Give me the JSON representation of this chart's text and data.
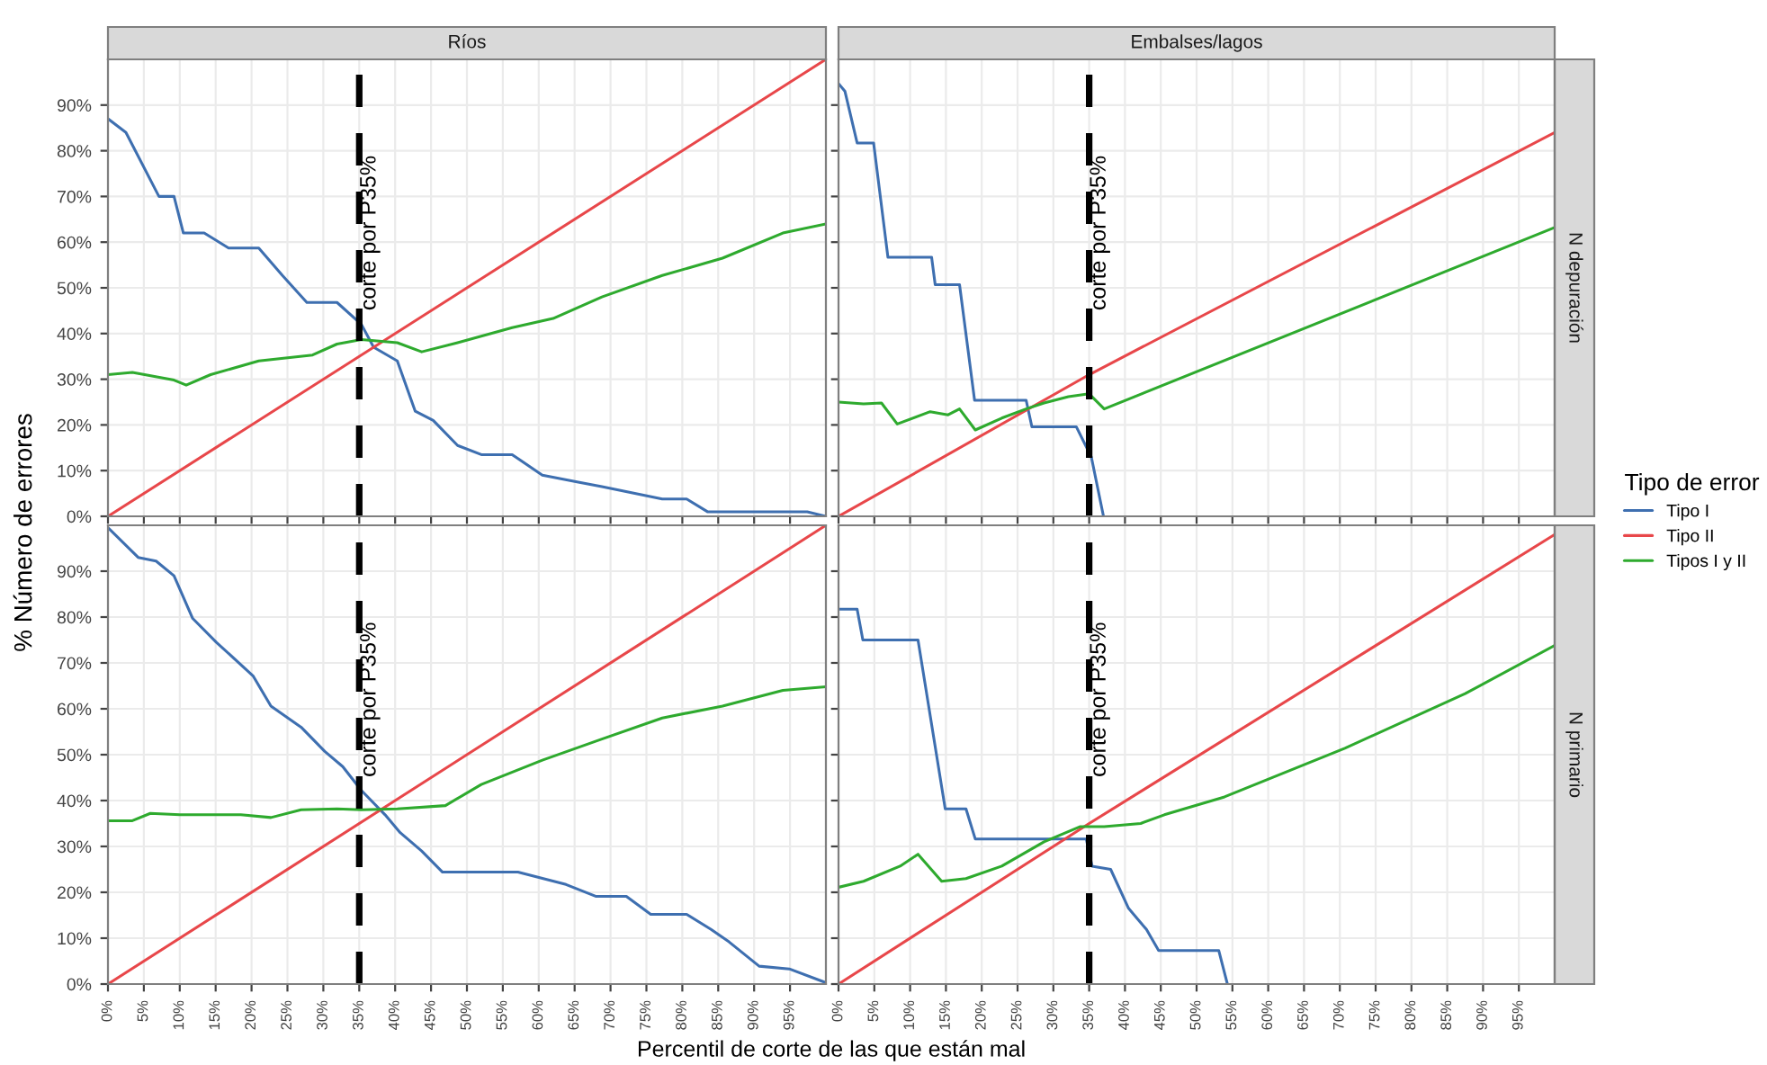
{
  "chart_data": [
    {
      "type": "line",
      "title": "Ríos",
      "xlim": [
        0,
        100
      ],
      "ylim": [
        0,
        100
      ],
      "xticks": [
        {
          "value": 0,
          "label": null
        },
        {
          "value": 5,
          "label": null
        },
        {
          "value": 10,
          "label": null
        },
        {
          "value": 15,
          "label": null
        },
        {
          "value": 20,
          "label": null
        },
        {
          "value": 25,
          "label": null
        },
        {
          "value": 30,
          "label": null
        },
        {
          "value": 35,
          "label": null
        },
        {
          "value": 40,
          "label": null
        },
        {
          "value": 45,
          "label": null
        },
        {
          "value": 50,
          "label": null
        },
        {
          "value": 55,
          "label": null
        },
        {
          "value": 60,
          "label": null
        },
        {
          "value": 65,
          "label": null
        },
        {
          "value": 70,
          "label": null
        },
        {
          "value": 75,
          "label": null
        },
        {
          "value": 80,
          "label": null
        },
        {
          "value": 85,
          "label": null
        },
        {
          "value": 90,
          "label": null
        },
        {
          "value": 95,
          "label": null
        }
      ],
      "yticks": [
        {
          "value": 0,
          "label": "0%"
        },
        {
          "value": 10,
          "label": "10%"
        },
        {
          "value": 20,
          "label": "20%"
        },
        {
          "value": 30,
          "label": "30%"
        },
        {
          "value": 40,
          "label": "40%"
        },
        {
          "value": 50,
          "label": "50%"
        },
        {
          "value": 60,
          "label": "60%"
        },
        {
          "value": 70,
          "label": "70%"
        },
        {
          "value": 80,
          "label": "80%"
        },
        {
          "value": 90,
          "label": "90%"
        }
      ],
      "tick_labels": "y",
      "grid": true,
      "legend": "right",
      "legend_title": "Tipo de error",
      "series": [
        {
          "name": "Tipo I",
          "color": "#3e6fb0",
          "x": [
            0,
            2.5,
            7.1,
            9.2,
            10.5,
            13.4,
            16.8,
            21,
            24.3,
            27.7,
            31.9,
            35.3,
            37,
            40.3,
            42.8,
            45.3,
            48.7,
            52,
            56.3,
            60.5,
            65.5,
            68.8,
            77.2,
            80.6,
            83.5,
            97.4,
            100
          ],
          "values": [
            87,
            84,
            70,
            70,
            62,
            62,
            58.7,
            58.7,
            52.7,
            46.8,
            46.8,
            42,
            37,
            34,
            23,
            21,
            15.5,
            13.5,
            13.5,
            9,
            7.5,
            6.5,
            3.8,
            3.8,
            1,
            1,
            0
          ]
        },
        {
          "name": "Tipo II",
          "color": "#e8474a",
          "x": [
            0,
            100
          ],
          "values": [
            0,
            100
          ]
        },
        {
          "name": "Tipos I y II",
          "color": "#2eaa2e",
          "x": [
            0,
            3.4,
            9.2,
            10.9,
            14.3,
            21,
            28.5,
            31.9,
            35.3,
            40.3,
            43.7,
            48.7,
            56.3,
            62,
            68.8,
            77.2,
            85.6,
            94,
            100
          ],
          "values": [
            31,
            31.5,
            29.8,
            28.7,
            31,
            34,
            35.3,
            37.7,
            38.7,
            38,
            36,
            38,
            41.3,
            43.3,
            48,
            52.7,
            56.5,
            62,
            64
          ]
        }
      ],
      "ref_lines": [
        {
          "axis": "x",
          "value": 35,
          "label": "corte por P35%",
          "color": "#000000",
          "line_style": "dashed"
        }
      ]
    },
    {
      "type": "line",
      "title": "Embalses/lagos",
      "y2label": "N depuración",
      "xlim": [
        0,
        100
      ],
      "ylim": [
        0,
        100
      ],
      "xticks": [
        {
          "value": 0,
          "label": null
        },
        {
          "value": 5,
          "label": null
        },
        {
          "value": 10,
          "label": null
        },
        {
          "value": 15,
          "label": null
        },
        {
          "value": 20,
          "label": null
        },
        {
          "value": 25,
          "label": null
        },
        {
          "value": 30,
          "label": null
        },
        {
          "value": 35,
          "label": null
        },
        {
          "value": 40,
          "label": null
        },
        {
          "value": 45,
          "label": null
        },
        {
          "value": 50,
          "label": null
        },
        {
          "value": 55,
          "label": null
        },
        {
          "value": 60,
          "label": null
        },
        {
          "value": 65,
          "label": null
        },
        {
          "value": 70,
          "label": null
        },
        {
          "value": 75,
          "label": null
        },
        {
          "value": 80,
          "label": null
        },
        {
          "value": 85,
          "label": null
        },
        {
          "value": 90,
          "label": null
        },
        {
          "value": 95,
          "label": null
        }
      ],
      "yticks": [
        {
          "value": 0,
          "label": null
        },
        {
          "value": 10,
          "label": null
        },
        {
          "value": 20,
          "label": null
        },
        {
          "value": 30,
          "label": null
        },
        {
          "value": 40,
          "label": null
        },
        {
          "value": 50,
          "label": null
        },
        {
          "value": 60,
          "label": null
        },
        {
          "value": 70,
          "label": null
        },
        {
          "value": 80,
          "label": null
        },
        {
          "value": 90,
          "label": null
        }
      ],
      "tick_labels": false,
      "grid": true,
      "series": [
        {
          "color": "#3e6fb0",
          "x": [
            0,
            0.9,
            2.6,
            4.9,
            6.9,
            7.8,
            13,
            13.5,
            16.9,
            19,
            26.2,
            27,
            33.2,
            35.3,
            37
          ],
          "values": [
            94.7,
            93,
            81.7,
            81.7,
            56.7,
            56.7,
            56.7,
            50.7,
            50.7,
            25.4,
            25.4,
            19.6,
            19.6,
            13,
            0
          ]
        },
        {
          "color": "#e8474a",
          "x": [
            0,
            35,
            100
          ],
          "values": [
            0,
            31,
            84
          ]
        },
        {
          "color": "#2eaa2e",
          "x": [
            0,
            3.5,
            6,
            8.2,
            12.8,
            15.3,
            16.9,
            19.1,
            22.8,
            26.2,
            28.7,
            32.1,
            35,
            37.1,
            100
          ],
          "values": [
            25,
            24.6,
            24.8,
            20.2,
            22.9,
            22.2,
            23.5,
            18.9,
            21.5,
            23.5,
            24.8,
            26.2,
            26.8,
            23.5,
            63.2
          ]
        }
      ],
      "ref_lines": [
        {
          "axis": "x",
          "value": 35,
          "label": "corte por P35%",
          "color": "#000000",
          "line_style": "dashed"
        }
      ]
    },
    {
      "type": "line",
      "xlabel": "Percentil de corte de las que están mal",
      "ylabel": "% Número de errores",
      "xlim": [
        0,
        100
      ],
      "ylim": [
        0,
        100
      ],
      "xticks": [
        {
          "value": 0,
          "label": "0%"
        },
        {
          "value": 5,
          "label": "5%"
        },
        {
          "value": 10,
          "label": "10%"
        },
        {
          "value": 15,
          "label": "15%"
        },
        {
          "value": 20,
          "label": "20%"
        },
        {
          "value": 25,
          "label": "25%"
        },
        {
          "value": 30,
          "label": "30%"
        },
        {
          "value": 35,
          "label": "35%"
        },
        {
          "value": 40,
          "label": "40%"
        },
        {
          "value": 45,
          "label": "45%"
        },
        {
          "value": 50,
          "label": "50%"
        },
        {
          "value": 55,
          "label": "55%"
        },
        {
          "value": 60,
          "label": "60%"
        },
        {
          "value": 65,
          "label": "65%"
        },
        {
          "value": 70,
          "label": "70%"
        },
        {
          "value": 75,
          "label": "75%"
        },
        {
          "value": 80,
          "label": "80%"
        },
        {
          "value": 85,
          "label": "85%"
        },
        {
          "value": 90,
          "label": "90%"
        },
        {
          "value": 95,
          "label": "95%"
        }
      ],
      "yticks": [
        {
          "value": 0,
          "label": "0%"
        },
        {
          "value": 10,
          "label": "10%"
        },
        {
          "value": 20,
          "label": "20%"
        },
        {
          "value": 30,
          "label": "30%"
        },
        {
          "value": 40,
          "label": "40%"
        },
        {
          "value": 50,
          "label": "50%"
        },
        {
          "value": 60,
          "label": "60%"
        },
        {
          "value": 70,
          "label": "70%"
        },
        {
          "value": 80,
          "label": "80%"
        },
        {
          "value": 90,
          "label": "90%"
        }
      ],
      "grid": true,
      "series": [
        {
          "color": "#3e6fb0",
          "x": [
            0,
            4.2,
            6.7,
            9.2,
            11.8,
            15.1,
            20.2,
            22.7,
            26.9,
            30.2,
            32.7,
            35.3,
            38.6,
            40.7,
            43.7,
            46.6,
            57.1,
            63.8,
            68,
            72.2,
            75.6,
            80.6,
            84,
            86.5,
            90.7,
            94.9,
            100
          ],
          "values": [
            99.5,
            93,
            92.2,
            89,
            79.7,
            74.5,
            67.2,
            60.6,
            56,
            50.7,
            47.4,
            42.2,
            36.9,
            33,
            29,
            24.4,
            24.4,
            21.7,
            19.1,
            19.1,
            15.2,
            15.2,
            11.9,
            9.2,
            3.9,
            3.3,
            0.3
          ]
        },
        {
          "color": "#e8474a",
          "x": [
            0,
            100
          ],
          "values": [
            0,
            100
          ]
        },
        {
          "color": "#2eaa2e",
          "x": [
            0,
            3.4,
            5.9,
            10,
            18.5,
            22.7,
            26.9,
            31.9,
            35.3,
            40.3,
            47,
            52,
            60.5,
            68.8,
            77.2,
            85.6,
            94,
            100
          ],
          "values": [
            35.6,
            35.6,
            37.2,
            36.9,
            36.9,
            36.3,
            38,
            38.2,
            38,
            38.2,
            38.9,
            43.5,
            48.8,
            53.4,
            58,
            60.6,
            64,
            64.8
          ]
        }
      ],
      "ref_lines": [
        {
          "axis": "x",
          "value": 35,
          "label": "corte por P35%",
          "color": "#000000",
          "line_style": "dashed"
        }
      ]
    },
    {
      "type": "line",
      "y2label": "N primario",
      "xlim": [
        0,
        100
      ],
      "ylim": [
        0,
        100
      ],
      "xticks": [
        {
          "value": 0,
          "label": "0%"
        },
        {
          "value": 5,
          "label": "5%"
        },
        {
          "value": 10,
          "label": "10%"
        },
        {
          "value": 15,
          "label": "15%"
        },
        {
          "value": 20,
          "label": "20%"
        },
        {
          "value": 25,
          "label": "25%"
        },
        {
          "value": 30,
          "label": "30%"
        },
        {
          "value": 35,
          "label": "35%"
        },
        {
          "value": 40,
          "label": "40%"
        },
        {
          "value": 45,
          "label": "45%"
        },
        {
          "value": 50,
          "label": "50%"
        },
        {
          "value": 55,
          "label": "55%"
        },
        {
          "value": 60,
          "label": "60%"
        },
        {
          "value": 65,
          "label": "65%"
        },
        {
          "value": 70,
          "label": "70%"
        },
        {
          "value": 75,
          "label": "75%"
        },
        {
          "value": 80,
          "label": "80%"
        },
        {
          "value": 85,
          "label": "85%"
        },
        {
          "value": 90,
          "label": "90%"
        },
        {
          "value": 95,
          "label": "95%"
        }
      ],
      "yticks": [
        {
          "value": 0,
          "label": null
        },
        {
          "value": 10,
          "label": null
        },
        {
          "value": 20,
          "label": null
        },
        {
          "value": 30,
          "label": null
        },
        {
          "value": 40,
          "label": null
        },
        {
          "value": 50,
          "label": null
        },
        {
          "value": 60,
          "label": null
        },
        {
          "value": 70,
          "label": null
        },
        {
          "value": 80,
          "label": null
        },
        {
          "value": 90,
          "label": null
        }
      ],
      "tick_labels": "x",
      "grid": true,
      "series": [
        {
          "color": "#3e6fb0",
          "x": [
            0,
            2.6,
            3.4,
            11.1,
            14.9,
            17.8,
            19.1,
            34.6,
            35.4,
            38,
            40.5,
            43,
            44.7,
            53.1,
            54.3
          ],
          "values": [
            81.7,
            81.7,
            75,
            75,
            38.2,
            38.2,
            31.6,
            31.6,
            25.7,
            25,
            16.5,
            11.9,
            7.3,
            7.3,
            0
          ]
        },
        {
          "color": "#e8474a",
          "x": [
            0,
            35,
            100
          ],
          "values": [
            0,
            35,
            98
          ]
        },
        {
          "color": "#2eaa2e",
          "x": [
            0,
            3.5,
            8.6,
            11.1,
            14.4,
            17.8,
            22.8,
            28.7,
            33.7,
            37.1,
            42.2,
            45.5,
            53.9,
            70.7,
            87.5,
            100
          ],
          "values": [
            21.1,
            22.4,
            25.7,
            28.3,
            22.4,
            23,
            25.7,
            31,
            34.3,
            34.3,
            35,
            36.9,
            40.8,
            51.4,
            63.3,
            73.8
          ]
        }
      ],
      "ref_lines": [
        {
          "axis": "x",
          "value": 35,
          "label": "corte por P35%",
          "color": "#000000",
          "line_style": "dashed"
        }
      ]
    }
  ]
}
